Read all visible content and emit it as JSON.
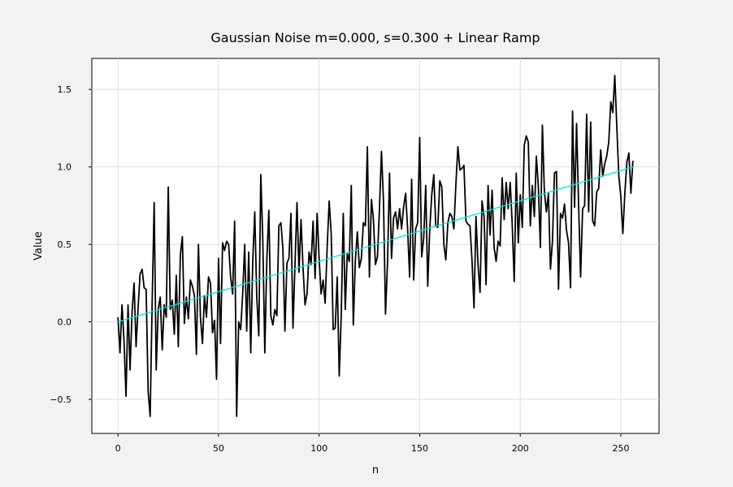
{
  "chart_data": {
    "type": "line",
    "title": "Gaussian Noise m=0.000, s=0.300 + Linear Ramp",
    "xlabel": "n",
    "ylabel": "Value",
    "xlim": [
      -13,
      269
    ],
    "ylim": [
      -0.72,
      1.7
    ],
    "xticks": [
      0,
      50,
      100,
      150,
      200,
      250
    ],
    "yticks": [
      -0.5,
      0.0,
      0.5,
      1.0,
      1.5
    ],
    "ytick_labels": [
      "−0.5",
      "0.0",
      "0.5",
      "1.0",
      "1.5"
    ],
    "grid": true,
    "series": [
      {
        "color": "#000000",
        "x_start": 0,
        "x_step": 1,
        "values": [
          0.03,
          -0.2,
          0.11,
          -0.12,
          -0.48,
          0.11,
          -0.31,
          0.06,
          0.25,
          -0.16,
          0.09,
          0.31,
          0.34,
          0.22,
          0.21,
          -0.45,
          -0.61,
          0.13,
          0.77,
          -0.31,
          0.08,
          0.16,
          -0.18,
          0.11,
          0.03,
          0.87,
          0.08,
          0.14,
          -0.08,
          0.3,
          -0.16,
          0.43,
          0.55,
          -0.01,
          0.16,
          0.02,
          0.27,
          0.23,
          0.17,
          -0.21,
          0.5,
          0.03,
          -0.14,
          0.17,
          0.03,
          0.29,
          0.25,
          -0.07,
          0.01,
          -0.37,
          0.41,
          -0.14,
          0.51,
          0.46,
          0.52,
          0.5,
          0.29,
          0.18,
          0.65,
          -0.61,
          0.0,
          -0.05,
          0.18,
          0.5,
          -0.06,
          0.45,
          -0.2,
          0.39,
          0.71,
          0.16,
          -0.09,
          0.95,
          0.53,
          -0.2,
          0.4,
          0.72,
          0.04,
          -0.02,
          0.08,
          0.04,
          0.62,
          0.64,
          0.47,
          -0.06,
          0.38,
          0.41,
          0.7,
          -0.04,
          0.37,
          0.77,
          0.32,
          0.66,
          0.35,
          0.11,
          0.18,
          0.45,
          0.37,
          0.65,
          0.28,
          0.7,
          0.41,
          0.18,
          0.27,
          0.12,
          0.48,
          0.78,
          0.57,
          -0.05,
          -0.04,
          0.29,
          -0.35,
          0.04,
          0.7,
          0.08,
          0.44,
          0.39,
          0.88,
          -0.02,
          0.39,
          0.58,
          0.35,
          0.41,
          0.64,
          0.62,
          1.13,
          0.29,
          0.79,
          0.66,
          0.37,
          0.42,
          0.73,
          1.1,
          0.78,
          0.05,
          0.38,
          0.96,
          0.41,
          0.67,
          0.71,
          0.6,
          0.73,
          0.6,
          0.74,
          0.83,
          0.6,
          0.29,
          0.92,
          0.27,
          0.6,
          0.64,
          1.19,
          0.42,
          0.54,
          0.88,
          0.23,
          0.6,
          0.82,
          0.95,
          0.62,
          0.61,
          0.91,
          0.87,
          0.5,
          0.4,
          0.64,
          0.7,
          0.68,
          0.6,
          0.89,
          1.13,
          0.98,
          0.99,
          1.01,
          0.65,
          0.63,
          0.62,
          0.4,
          0.09,
          0.68,
          0.37,
          0.19,
          0.78,
          0.68,
          0.24,
          0.88,
          0.56,
          0.85,
          0.48,
          0.39,
          0.52,
          0.49,
          0.93,
          0.66,
          0.9,
          0.73,
          0.9,
          0.63,
          0.26,
          0.96,
          0.51,
          0.82,
          0.61,
          1.14,
          1.2,
          1.16,
          0.62,
          0.88,
          0.68,
          1.07,
          0.87,
          0.48,
          1.27,
          0.84,
          0.71,
          0.83,
          0.34,
          0.52,
          0.96,
          0.97,
          0.21,
          0.7,
          0.67,
          0.76,
          0.59,
          0.51,
          0.22,
          1.36,
          0.74,
          1.28,
          0.76,
          0.29,
          0.73,
          0.75,
          1.34,
          0.71,
          1.29,
          0.65,
          0.62,
          0.84,
          0.86,
          1.11,
          0.94,
          1.02,
          1.07,
          1.16,
          1.42,
          1.35,
          1.59,
          1.26,
          0.94,
          0.81,
          0.57,
          0.83,
          1.03,
          1.09,
          0.83,
          1.04
        ]
      },
      {
        "color": "#00e5e5",
        "x": [
          0,
          256
        ],
        "y": [
          0.0,
          1.0
        ]
      }
    ]
  }
}
